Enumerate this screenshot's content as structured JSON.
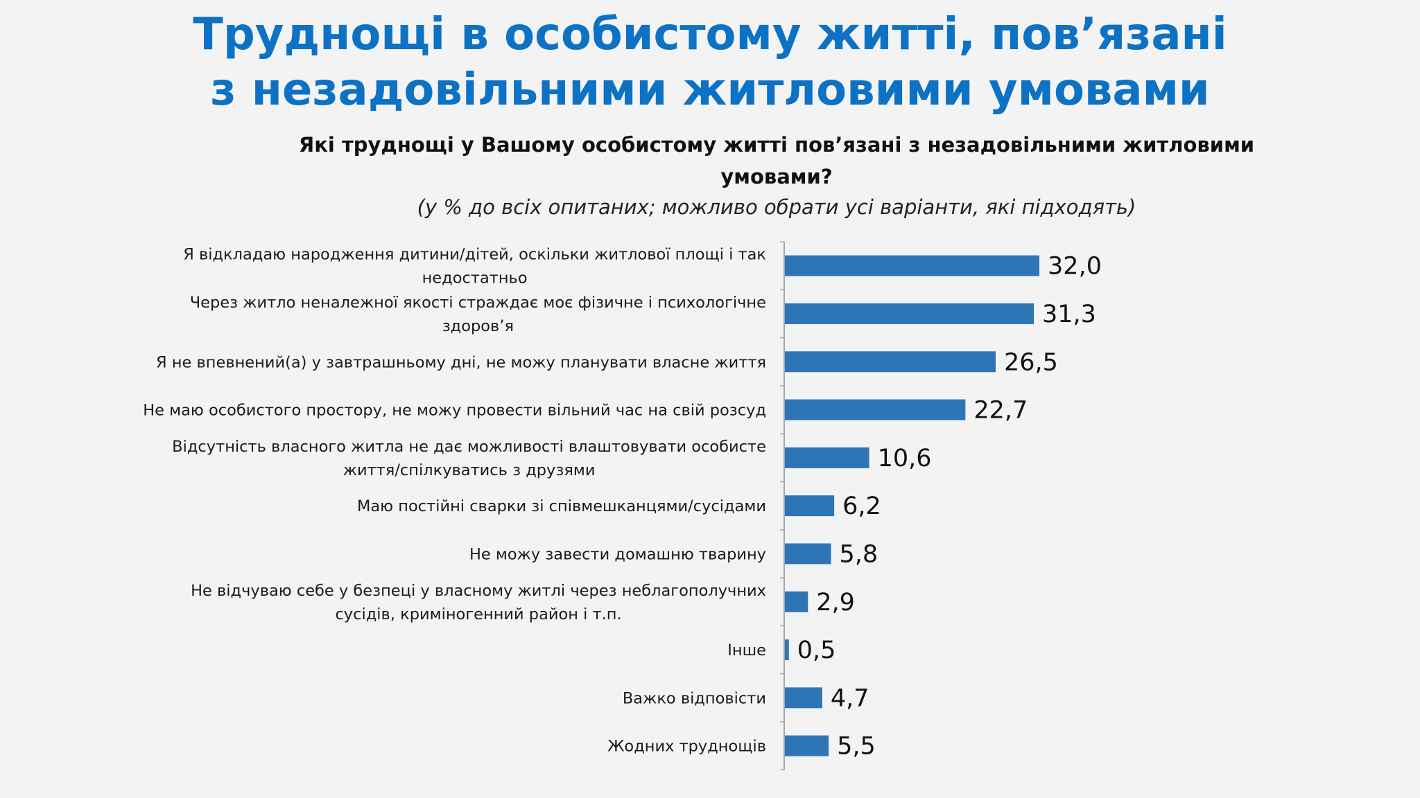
{
  "slide": {
    "title_line1": "Труднощі в особистому житті, пов’язані",
    "title_line2": "з незадовільними житловими умовами",
    "question": "Які труднощі у Вашому особистому житті пов’язані з незадовільними житловими умовами?",
    "note": "(у % до всіх опитаних; можливо обрати усі варіанти, які підходять)"
  },
  "colors": {
    "title": "#0d72c4",
    "bar": "#2e75b6",
    "axis": "#a6a6a6",
    "background": "#f3f3f3"
  },
  "chart_data": {
    "type": "bar",
    "orientation": "horizontal",
    "categories": [
      [
        "Я відкладаю народження дитини/дітей, оскільки житлової площі і так",
        "недостатньо"
      ],
      [
        "Через житло неналежної якості страждає моє фізичне і психологічне",
        "здоров’я"
      ],
      [
        "Я не впевнений(а) у завтрашньому дні, не можу планувати власне життя"
      ],
      [
        "Не маю особистого простору, не можу провести вільний час на свій розсуд"
      ],
      [
        "Відсутність власного житла не дає можливості влаштовувати особисте",
        "життя/спілкуватись з друзями"
      ],
      [
        "Маю постійні сварки зі співмешканцями/сусідами"
      ],
      [
        "Не можу завести домашню тварину"
      ],
      [
        "Не відчуваю себе у безпеці у власному житлі через неблагополучних",
        "сусідів, криміногенний район і т.п."
      ],
      [
        "Інше"
      ],
      [
        "Важко відповісти"
      ],
      [
        "Жодних труднощів"
      ]
    ],
    "values": [
      32.0,
      31.3,
      26.5,
      22.7,
      10.6,
      6.2,
      5.8,
      2.9,
      0.5,
      4.7,
      5.5
    ],
    "value_labels": [
      "32,0",
      "31,3",
      "26,5",
      "22,7",
      "10,6",
      "6,2",
      "5,8",
      "2,9",
      "0,5",
      "4,7",
      "5,5"
    ],
    "title": "Які труднощі у Вашому особистому житті пов’язані з незадовільними житловими умовами?",
    "xlabel": "",
    "ylabel": "",
    "grid": false,
    "legend": "none"
  }
}
